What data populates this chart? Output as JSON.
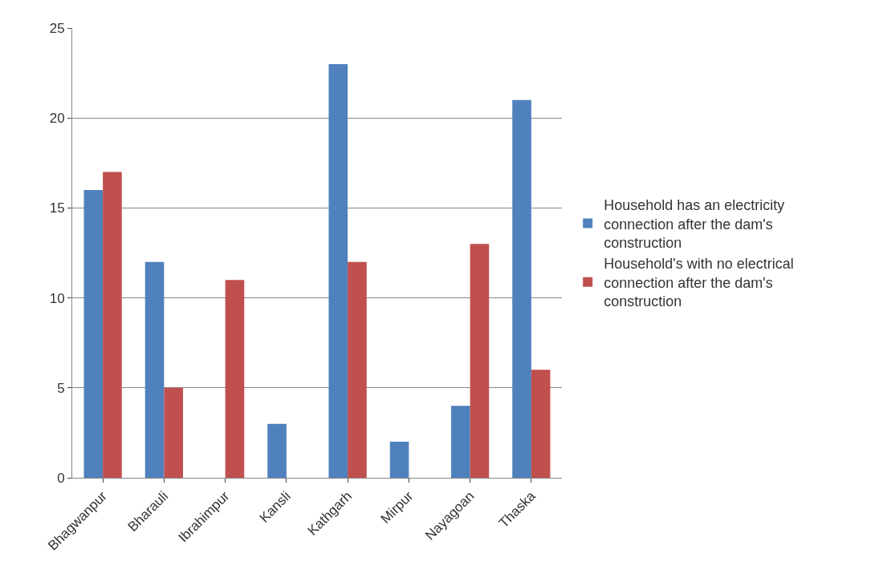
{
  "chart_data": {
    "type": "bar",
    "categories": [
      "Bhagwanpur",
      "Bharauli",
      "Ibrahimpur",
      "Kansli",
      "Kathgarh",
      "Mirpur",
      "Nayagoan",
      "Thaska"
    ],
    "series": [
      {
        "name": "Household has an electricity connection after the dam's construction",
        "color": "#4f81bd",
        "values": [
          16,
          12,
          0,
          3,
          23,
          2,
          4,
          21
        ]
      },
      {
        "name": "Household's with no electrical connection after the dam's construction",
        "color": "#c0504d",
        "values": [
          17,
          5,
          11,
          0,
          12,
          0,
          13,
          6
        ]
      }
    ],
    "ylim": [
      0,
      25
    ],
    "yticks": [
      0,
      5,
      10,
      15,
      20,
      25
    ],
    "grid": "y",
    "legend": "right"
  }
}
